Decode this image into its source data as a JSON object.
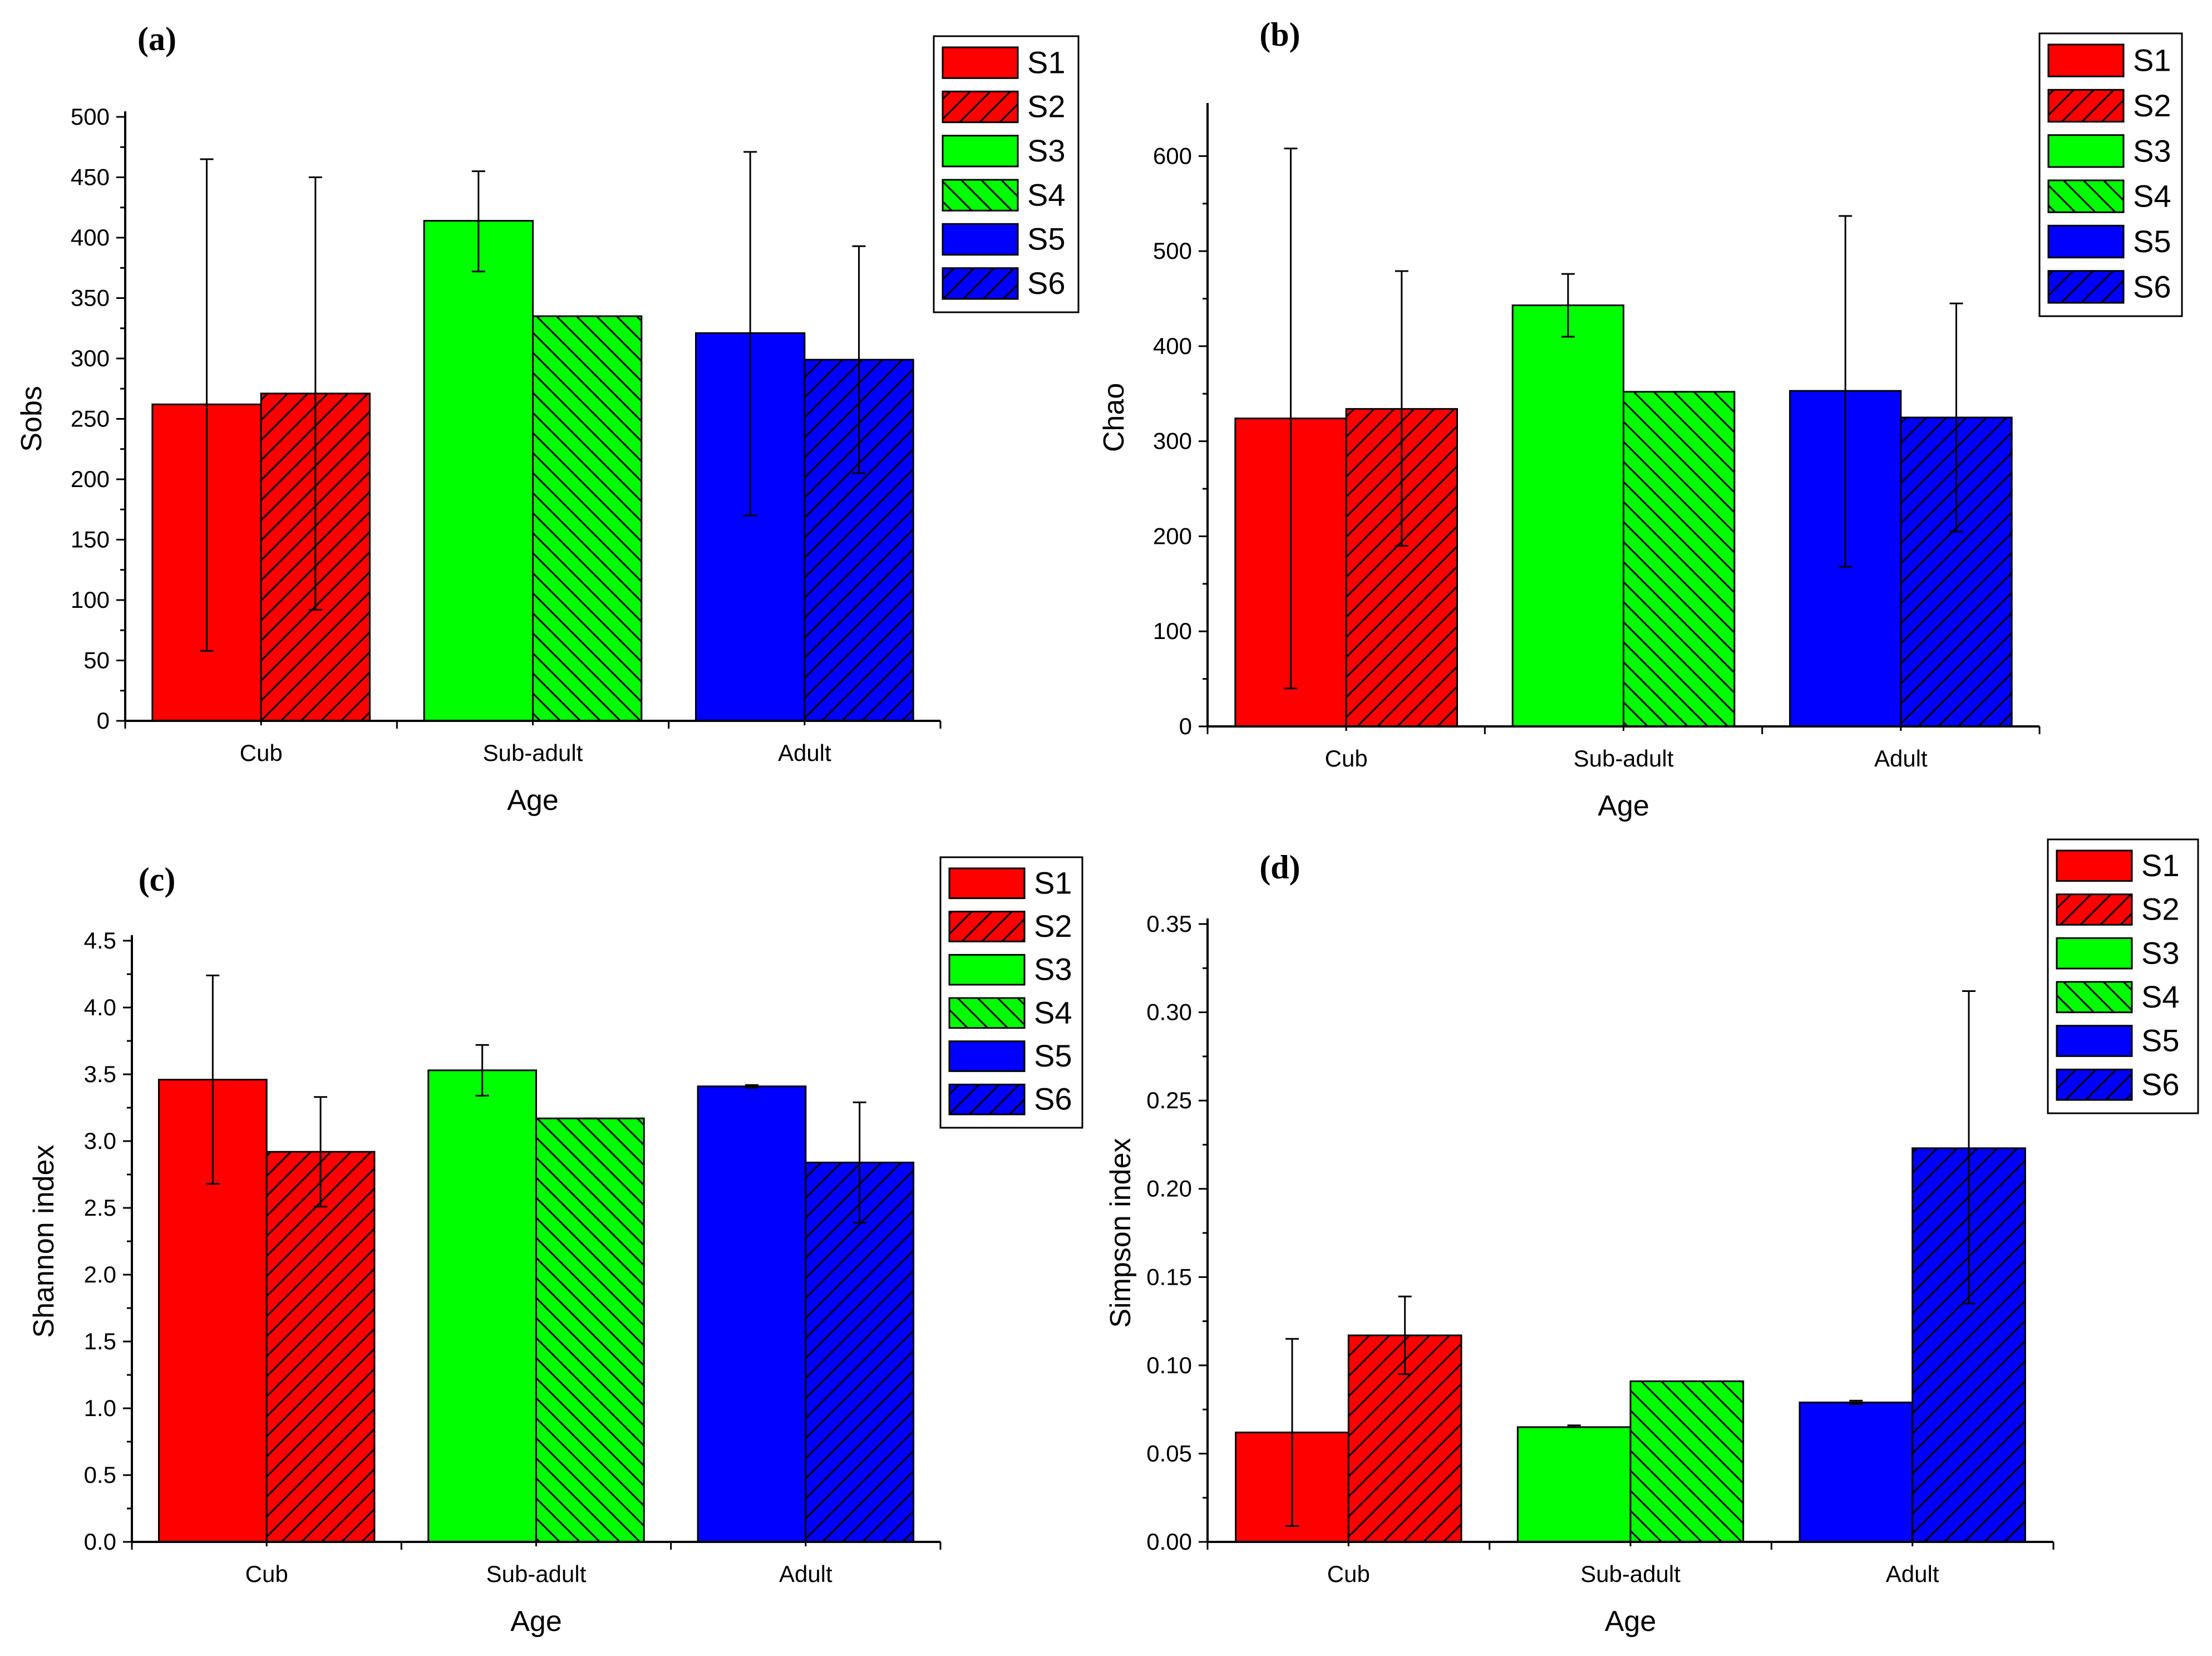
{
  "series_style": [
    {
      "name": "S1",
      "color": "#ff0000",
      "pattern": "solid"
    },
    {
      "name": "S2",
      "color": "#ff0000",
      "pattern": "hatch"
    },
    {
      "name": "S3",
      "color": "#00ff00",
      "pattern": "solid"
    },
    {
      "name": "S4",
      "color": "#00ff00",
      "pattern": "hatch"
    },
    {
      "name": "S5",
      "color": "#0000ff",
      "pattern": "solid"
    },
    {
      "name": "S6",
      "color": "#0000ff",
      "pattern": "hatch"
    }
  ],
  "chart_data": [
    {
      "panel": "(a)",
      "type": "bar",
      "xlabel": "Age",
      "ylabel": "Sobs",
      "categories": [
        "Cub",
        "Sub-adult",
        "Adult"
      ],
      "ylim": [
        0,
        500
      ],
      "yticks": [
        "0",
        "50",
        "100",
        "150",
        "200",
        "250",
        "300",
        "350",
        "400",
        "450",
        "500"
      ],
      "legend": [
        "S1",
        "S2",
        "S3",
        "S4",
        "S5",
        "S6"
      ],
      "series": [
        {
          "name": "S1",
          "category": "Cub",
          "value": 262,
          "err_low": 58,
          "err_high": 465
        },
        {
          "name": "S2",
          "category": "Cub",
          "value": 271,
          "err_low": 92,
          "err_high": 450
        },
        {
          "name": "S3",
          "category": "Sub-adult",
          "value": 414,
          "err_low": 372,
          "err_high": 455
        },
        {
          "name": "S4",
          "category": "Sub-adult",
          "value": 335,
          "err_low": 335,
          "err_high": 335
        },
        {
          "name": "S5",
          "category": "Adult",
          "value": 321,
          "err_low": 170,
          "err_high": 471
        },
        {
          "name": "S6",
          "category": "Adult",
          "value": 299,
          "err_low": 205,
          "err_high": 393
        }
      ]
    },
    {
      "panel": "(b)",
      "type": "bar",
      "xlabel": "Age",
      "ylabel": "Chao",
      "categories": [
        "Cub",
        "Sub-adult",
        "Adult"
      ],
      "ylim": [
        0,
        650
      ],
      "yticks": [
        "0",
        "100",
        "200",
        "300",
        "400",
        "500",
        "600"
      ],
      "legend": [
        "S1",
        "S2",
        "S3",
        "S4",
        "S5",
        "S6"
      ],
      "series": [
        {
          "name": "S1",
          "category": "Cub",
          "value": 324,
          "err_low": 40,
          "err_high": 608
        },
        {
          "name": "S2",
          "category": "Cub",
          "value": 334,
          "err_low": 190,
          "err_high": 479
        },
        {
          "name": "S3",
          "category": "Sub-adult",
          "value": 443,
          "err_low": 410,
          "err_high": 476
        },
        {
          "name": "S4",
          "category": "Sub-adult",
          "value": 352,
          "err_low": 352,
          "err_high": 352
        },
        {
          "name": "S5",
          "category": "Adult",
          "value": 353,
          "err_low": 168,
          "err_high": 537
        },
        {
          "name": "S6",
          "category": "Adult",
          "value": 325,
          "err_low": 205,
          "err_high": 445
        }
      ]
    },
    {
      "panel": "(c)",
      "type": "bar",
      "xlabel": "Age",
      "ylabel": "Shannon index",
      "categories": [
        "Cub",
        "Sub-adult",
        "Adult"
      ],
      "ylim": [
        0,
        4.5
      ],
      "yticks": [
        "0.0",
        "0.5",
        "1.0",
        "1.5",
        "2.0",
        "2.5",
        "3.0",
        "3.5",
        "4.0",
        "4.5"
      ],
      "legend": [
        "S1",
        "S2",
        "S3",
        "S4",
        "S5",
        "S6"
      ],
      "series": [
        {
          "name": "S1",
          "category": "Cub",
          "value": 3.46,
          "err_low": 2.68,
          "err_high": 4.24
        },
        {
          "name": "S2",
          "category": "Cub",
          "value": 2.92,
          "err_low": 2.51,
          "err_high": 3.33
        },
        {
          "name": "S3",
          "category": "Sub-adult",
          "value": 3.53,
          "err_low": 3.34,
          "err_high": 3.72
        },
        {
          "name": "S4",
          "category": "Sub-adult",
          "value": 3.17,
          "err_low": 3.17,
          "err_high": 3.17
        },
        {
          "name": "S5",
          "category": "Adult",
          "value": 3.41,
          "err_low": 3.4,
          "err_high": 3.42
        },
        {
          "name": "S6",
          "category": "Adult",
          "value": 2.84,
          "err_low": 2.39,
          "err_high": 3.29
        }
      ]
    },
    {
      "panel": "(d)",
      "type": "bar",
      "xlabel": "Age",
      "ylabel": "Simpson index",
      "categories": [
        "Cub",
        "Sub-adult",
        "Adult"
      ],
      "ylim": [
        0,
        0.35
      ],
      "yticks": [
        "0.00",
        "0.05",
        "0.10",
        "0.15",
        "0.20",
        "0.25",
        "0.30",
        "0.35"
      ],
      "legend": [
        "S1",
        "S2",
        "S3",
        "S4",
        "S5",
        "S6"
      ],
      "series": [
        {
          "name": "S1",
          "category": "Cub",
          "value": 0.062,
          "err_low": 0.009,
          "err_high": 0.115
        },
        {
          "name": "S2",
          "category": "Cub",
          "value": 0.117,
          "err_low": 0.095,
          "err_high": 0.139
        },
        {
          "name": "S3",
          "category": "Sub-adult",
          "value": 0.065,
          "err_low": 0.065,
          "err_high": 0.066
        },
        {
          "name": "S4",
          "category": "Sub-adult",
          "value": 0.091,
          "err_low": 0.091,
          "err_high": 0.091
        },
        {
          "name": "S5",
          "category": "Adult",
          "value": 0.079,
          "err_low": 0.078,
          "err_high": 0.08
        },
        {
          "name": "S6",
          "category": "Adult",
          "value": 0.223,
          "err_low": 0.135,
          "err_high": 0.312
        }
      ]
    }
  ]
}
